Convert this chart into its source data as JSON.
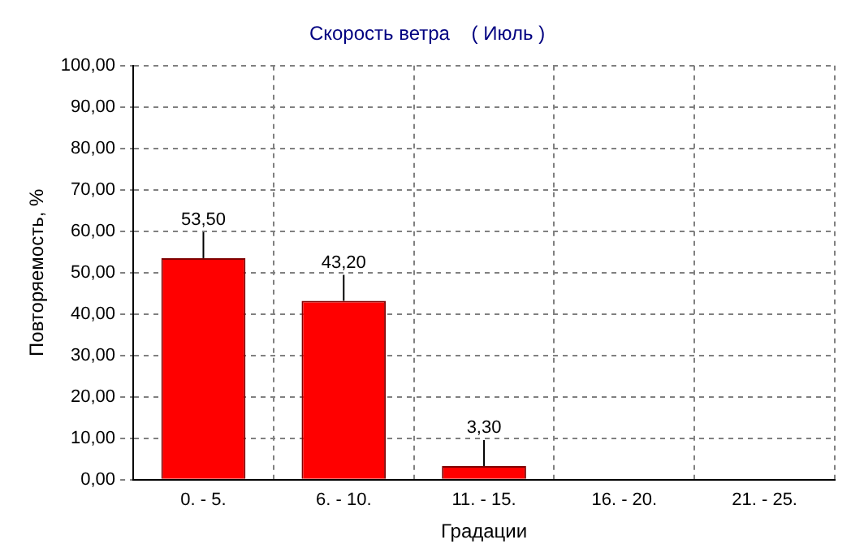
{
  "chart_data": {
    "type": "bar",
    "title": "Скорость ветра    ( Июль )",
    "xlabel": "Градации",
    "ylabel": "Повторяемость, %",
    "categories": [
      "0. - 5.",
      "6. - 10.",
      "11. - 15.",
      "16. - 20.",
      "21. - 25."
    ],
    "values": [
      53.5,
      43.2,
      3.3,
      0,
      0
    ],
    "value_labels": [
      "53,50",
      "43,20",
      "3,30",
      null,
      null
    ],
    "color": "#ff0000",
    "ylim": [
      0,
      100
    ],
    "yticks": [
      {
        "value": 0,
        "label": "0,00"
      },
      {
        "value": 10,
        "label": "10,00"
      },
      {
        "value": 20,
        "label": "20,00"
      },
      {
        "value": 30,
        "label": "30,00"
      },
      {
        "value": 40,
        "label": "40,00"
      },
      {
        "value": 50,
        "label": "50,00"
      },
      {
        "value": 60,
        "label": "60,00"
      },
      {
        "value": 70,
        "label": "70,00"
      },
      {
        "value": 80,
        "label": "80,00"
      },
      {
        "value": 90,
        "label": "90,00"
      },
      {
        "value": 100,
        "label": "100,00"
      }
    ],
    "grid": true
  }
}
